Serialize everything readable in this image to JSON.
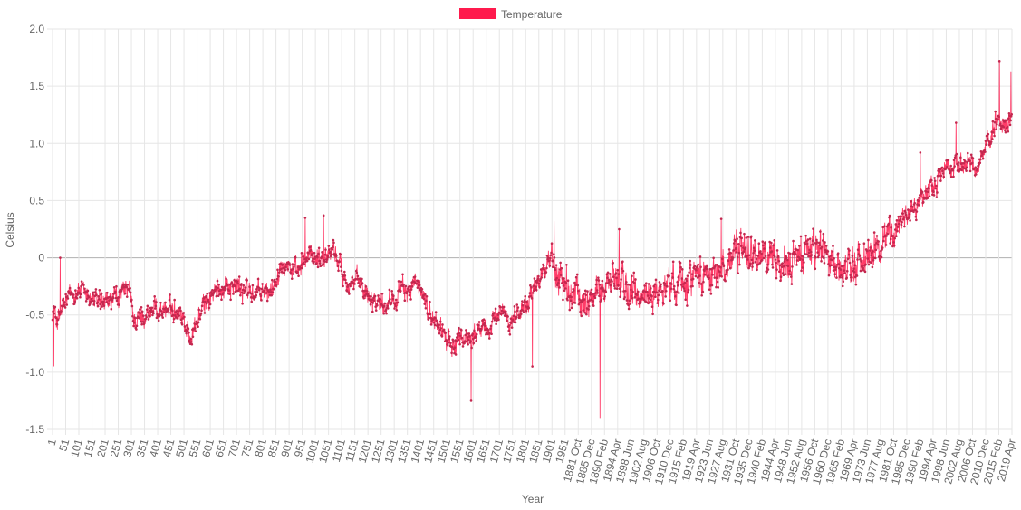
{
  "chart_data": {
    "type": "line",
    "title": "",
    "xlabel": "Year",
    "ylabel": "Celsius",
    "ylim": [
      -1.5,
      2.0
    ],
    "yticks": [
      "2.0",
      "1.5",
      "1.0",
      "0.5",
      "0",
      "-0.5",
      "-1.0",
      "-1.5"
    ],
    "ytick_values": [
      2.0,
      1.5,
      1.0,
      0.5,
      0,
      -0.5,
      -1.0,
      -1.5
    ],
    "grid": true,
    "legend_position": "top",
    "colors": {
      "line": "#ff1a4d",
      "point": "#c4284f",
      "legend_box": "#ff1a4d",
      "grid": "#e6e6e6",
      "zero_line": "#b0b0b0"
    },
    "x_tick_labels": [
      "1",
      "51",
      "101",
      "151",
      "201",
      "251",
      "301",
      "351",
      "401",
      "451",
      "501",
      "551",
      "601",
      "651",
      "701",
      "751",
      "801",
      "851",
      "901",
      "951",
      "1001",
      "1051",
      "1101",
      "1151",
      "1201",
      "1251",
      "1301",
      "1351",
      "1401",
      "1451",
      "1501",
      "1551",
      "1601",
      "1651",
      "1701",
      "1751",
      "1801",
      "1851",
      "1901",
      "1951",
      "1881 Oct",
      "1885 Dec",
      "1890 Feb",
      "1894 Apr",
      "1898 Jun",
      "1902 Aug",
      "1906 Oct",
      "1910 Dec",
      "1915 Feb",
      "1919 Apr",
      "1923 Jun",
      "1927 Aug",
      "1931 Oct",
      "1935 Dec",
      "1940 Feb",
      "1944 Apr",
      "1948 Jun",
      "1952 Aug",
      "1956 Oct",
      "1960 Dec",
      "1965 Feb",
      "1969 Apr",
      "1973 Jun",
      "1977 Aug",
      "1981 Oct",
      "1985 Dec",
      "1990 Feb",
      "1994 Apr",
      "1998 Jun",
      "2002 Aug",
      "2006 Oct",
      "2010 Dec",
      "2015 Feb",
      "2019 Apr"
    ],
    "series": [
      {
        "name": "Temperature",
        "anchors": [
          [
            0,
            -0.45
          ],
          [
            20,
            -0.55
          ],
          [
            60,
            -0.35
          ],
          [
            100,
            -0.28
          ],
          [
            200,
            -0.42
          ],
          [
            300,
            -0.28
          ],
          [
            320,
            -0.55
          ],
          [
            400,
            -0.45
          ],
          [
            500,
            -0.45
          ],
          [
            540,
            -0.7
          ],
          [
            600,
            -0.38
          ],
          [
            680,
            -0.22
          ],
          [
            760,
            -0.28
          ],
          [
            800,
            -0.32
          ],
          [
            860,
            -0.28
          ],
          [
            900,
            0.0
          ],
          [
            960,
            -0.15
          ],
          [
            1000,
            0.02
          ],
          [
            1060,
            0.0
          ],
          [
            1100,
            0.08
          ],
          [
            1150,
            -0.2
          ],
          [
            1200,
            -0.22
          ],
          [
            1260,
            -0.35
          ],
          [
            1300,
            -0.4
          ],
          [
            1360,
            -0.3
          ],
          [
            1420,
            -0.25
          ],
          [
            1450,
            -0.3
          ],
          [
            1480,
            -0.52
          ],
          [
            1520,
            -0.6
          ],
          [
            1560,
            -0.78
          ],
          [
            1600,
            -0.72
          ],
          [
            1660,
            -0.65
          ],
          [
            1720,
            -0.6
          ],
          [
            1760,
            -0.45
          ],
          [
            1800,
            -0.55
          ],
          [
            1860,
            -0.38
          ],
          [
            1900,
            -0.25
          ],
          [
            1930,
            -0.05
          ],
          [
            1950,
            0.0
          ],
          [
            1980,
            -0.15
          ],
          [
            2020,
            -0.3
          ],
          [
            2080,
            -0.38
          ],
          [
            2140,
            -0.3
          ],
          [
            2200,
            -0.15
          ],
          [
            2280,
            -0.35
          ],
          [
            2380,
            -0.3
          ],
          [
            2460,
            -0.18
          ],
          [
            2540,
            -0.12
          ],
          [
            2600,
            -0.15
          ],
          [
            2700,
            0.08
          ],
          [
            2780,
            0.02
          ],
          [
            2860,
            -0.12
          ],
          [
            2940,
            0.05
          ],
          [
            3020,
            0.1
          ],
          [
            3100,
            -0.15
          ],
          [
            3160,
            -0.02
          ],
          [
            3200,
            0.05
          ],
          [
            3240,
            0.12
          ],
          [
            3280,
            0.2
          ],
          [
            3320,
            0.35
          ],
          [
            3380,
            0.45
          ],
          [
            3440,
            0.6
          ],
          [
            3500,
            0.78
          ],
          [
            3560,
            0.85
          ],
          [
            3620,
            0.8
          ],
          [
            3660,
            0.92
          ],
          [
            3700,
            1.2
          ],
          [
            3740,
            1.15
          ],
          [
            3758,
            1.22
          ]
        ],
        "peaks": [
          [
            5,
            -0.95
          ],
          [
            30,
            0.0
          ],
          [
            1062,
            0.37
          ],
          [
            990,
            0.35
          ],
          [
            1640,
            -1.25
          ],
          [
            1880,
            -0.95
          ],
          [
            1965,
            0.32
          ],
          [
            2145,
            -1.4
          ],
          [
            2220,
            0.25
          ],
          [
            2620,
            0.34
          ],
          [
            3400,
            0.92
          ],
          [
            3540,
            1.18
          ],
          [
            3710,
            1.72
          ],
          [
            3755,
            1.63
          ]
        ]
      }
    ]
  }
}
